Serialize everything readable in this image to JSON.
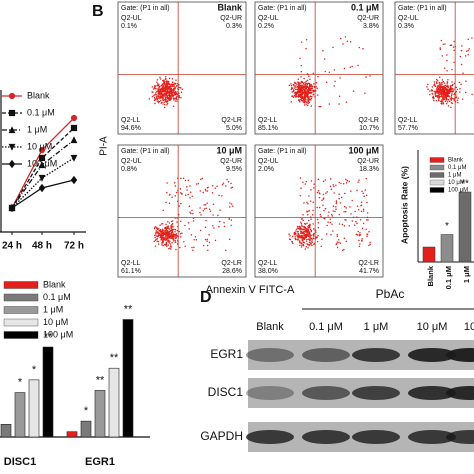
{
  "panel_labels": [
    "B",
    "D"
  ],
  "chart_data": [
    {
      "type": "line",
      "categories": [
        "24 h",
        "48 h",
        "72 h"
      ],
      "ylim": [
        0,
        1.32
      ],
      "series": [
        {
          "name": "Blank",
          "color": "#d62728",
          "dash": "solid",
          "marker": "circle",
          "values": [
            0.24,
            0.82,
            1.14
          ]
        },
        {
          "name": "0.1 μM",
          "color": "#111111",
          "dash": "dashed",
          "marker": "square",
          "values": [
            0.24,
            0.74,
            1.04
          ]
        },
        {
          "name": "1 μM",
          "color": "#111111",
          "dash": "dashdot",
          "marker": "triangle",
          "values": [
            0.24,
            0.67,
            0.92
          ]
        },
        {
          "name": "10 μM",
          "color": "#111111",
          "dash": "dotted",
          "marker": "triangle-down",
          "values": [
            0.24,
            0.54,
            0.74
          ]
        },
        {
          "name": "100 μM",
          "color": "#111111",
          "dash": "solid",
          "marker": "diamond",
          "values": [
            0.24,
            0.44,
            0.52
          ]
        }
      ]
    },
    {
      "type": "bar",
      "y_label": "Apoptosis Rate (%)",
      "categories": [
        "Blank",
        "0.1 μM",
        "1 μM"
      ],
      "values": [
        6,
        11,
        28
      ],
      "colors": [
        "#e3201b",
        "#8c8c8c",
        "#6b6b6b"
      ],
      "significance": [
        null,
        "*",
        "**"
      ],
      "ylim": [
        0,
        40
      ],
      "legend": {
        "names": [
          "Blank",
          "0.1 μM",
          "1 μM",
          "10 μM",
          "100 μM"
        ],
        "colors": [
          "#e3201b",
          "#8c8c8c",
          "#6b6b6b",
          "#d9d9d9",
          "#000000"
        ]
      }
    },
    {
      "type": "grouped_bar",
      "categories": [
        "DISC1",
        "EGR1"
      ],
      "ylim": [
        0,
        12
      ],
      "series": [
        {
          "name": "Blank",
          "color": "#e3201b",
          "values": [
            null,
            0.5
          ],
          "significance": [
            null,
            null
          ]
        },
        {
          "name": "0.1 μM",
          "color": "#7a7a7a",
          "values": [
            1.2,
            1.5
          ],
          "significance": [
            null,
            "*"
          ]
        },
        {
          "name": "1 μM",
          "color": "#9a9a9a",
          "values": [
            4.2,
            4.4
          ],
          "significance": [
            "*",
            "**"
          ]
        },
        {
          "name": "10 μM",
          "color": "#e6e6e6",
          "values": [
            5.4,
            6.5
          ],
          "significance": [
            "*",
            "**"
          ]
        },
        {
          "name": "100 μM",
          "color": "#000000",
          "values": [
            8.5,
            11.1
          ],
          "significance": [
            "**",
            "**"
          ]
        }
      ]
    }
  ],
  "flow": {
    "x_label": "Annexin V FITC-A",
    "y_label": "PI-A",
    "gate": "Gate: (P1 in all)",
    "quadrants": [
      "Q2-UL",
      "Q2-UR",
      "Q2-LL",
      "Q2-LR"
    ],
    "plots": [
      {
        "label": "Blank",
        "UL": "0.1%",
        "UR": "0.3%",
        "LL": "94.6%",
        "LR": "5.0%"
      },
      {
        "label": "0.1 μM",
        "UL": "0.2%",
        "UR": "3.8%",
        "LL": "85.1%",
        "LR": "10.7%"
      },
      {
        "UL": "0.3%",
        "LL": "57.7%"
      },
      {
        "label": "10 μM",
        "UL": "0.8%",
        "UR": "9.5%",
        "LL": "61.1%",
        "LR": "28.6%"
      },
      {
        "label": "100 μM",
        "UL": "2.0%",
        "UR": "18.3%",
        "LL": "38.0%",
        "LR": "41.7%"
      }
    ]
  },
  "blot": {
    "group": "PbAc",
    "lanes": [
      "Blank",
      "0.1 μM",
      "1 μM",
      "10 μM",
      "10"
    ],
    "rows": [
      "EGR1",
      "DISC1",
      "GAPDH"
    ]
  }
}
